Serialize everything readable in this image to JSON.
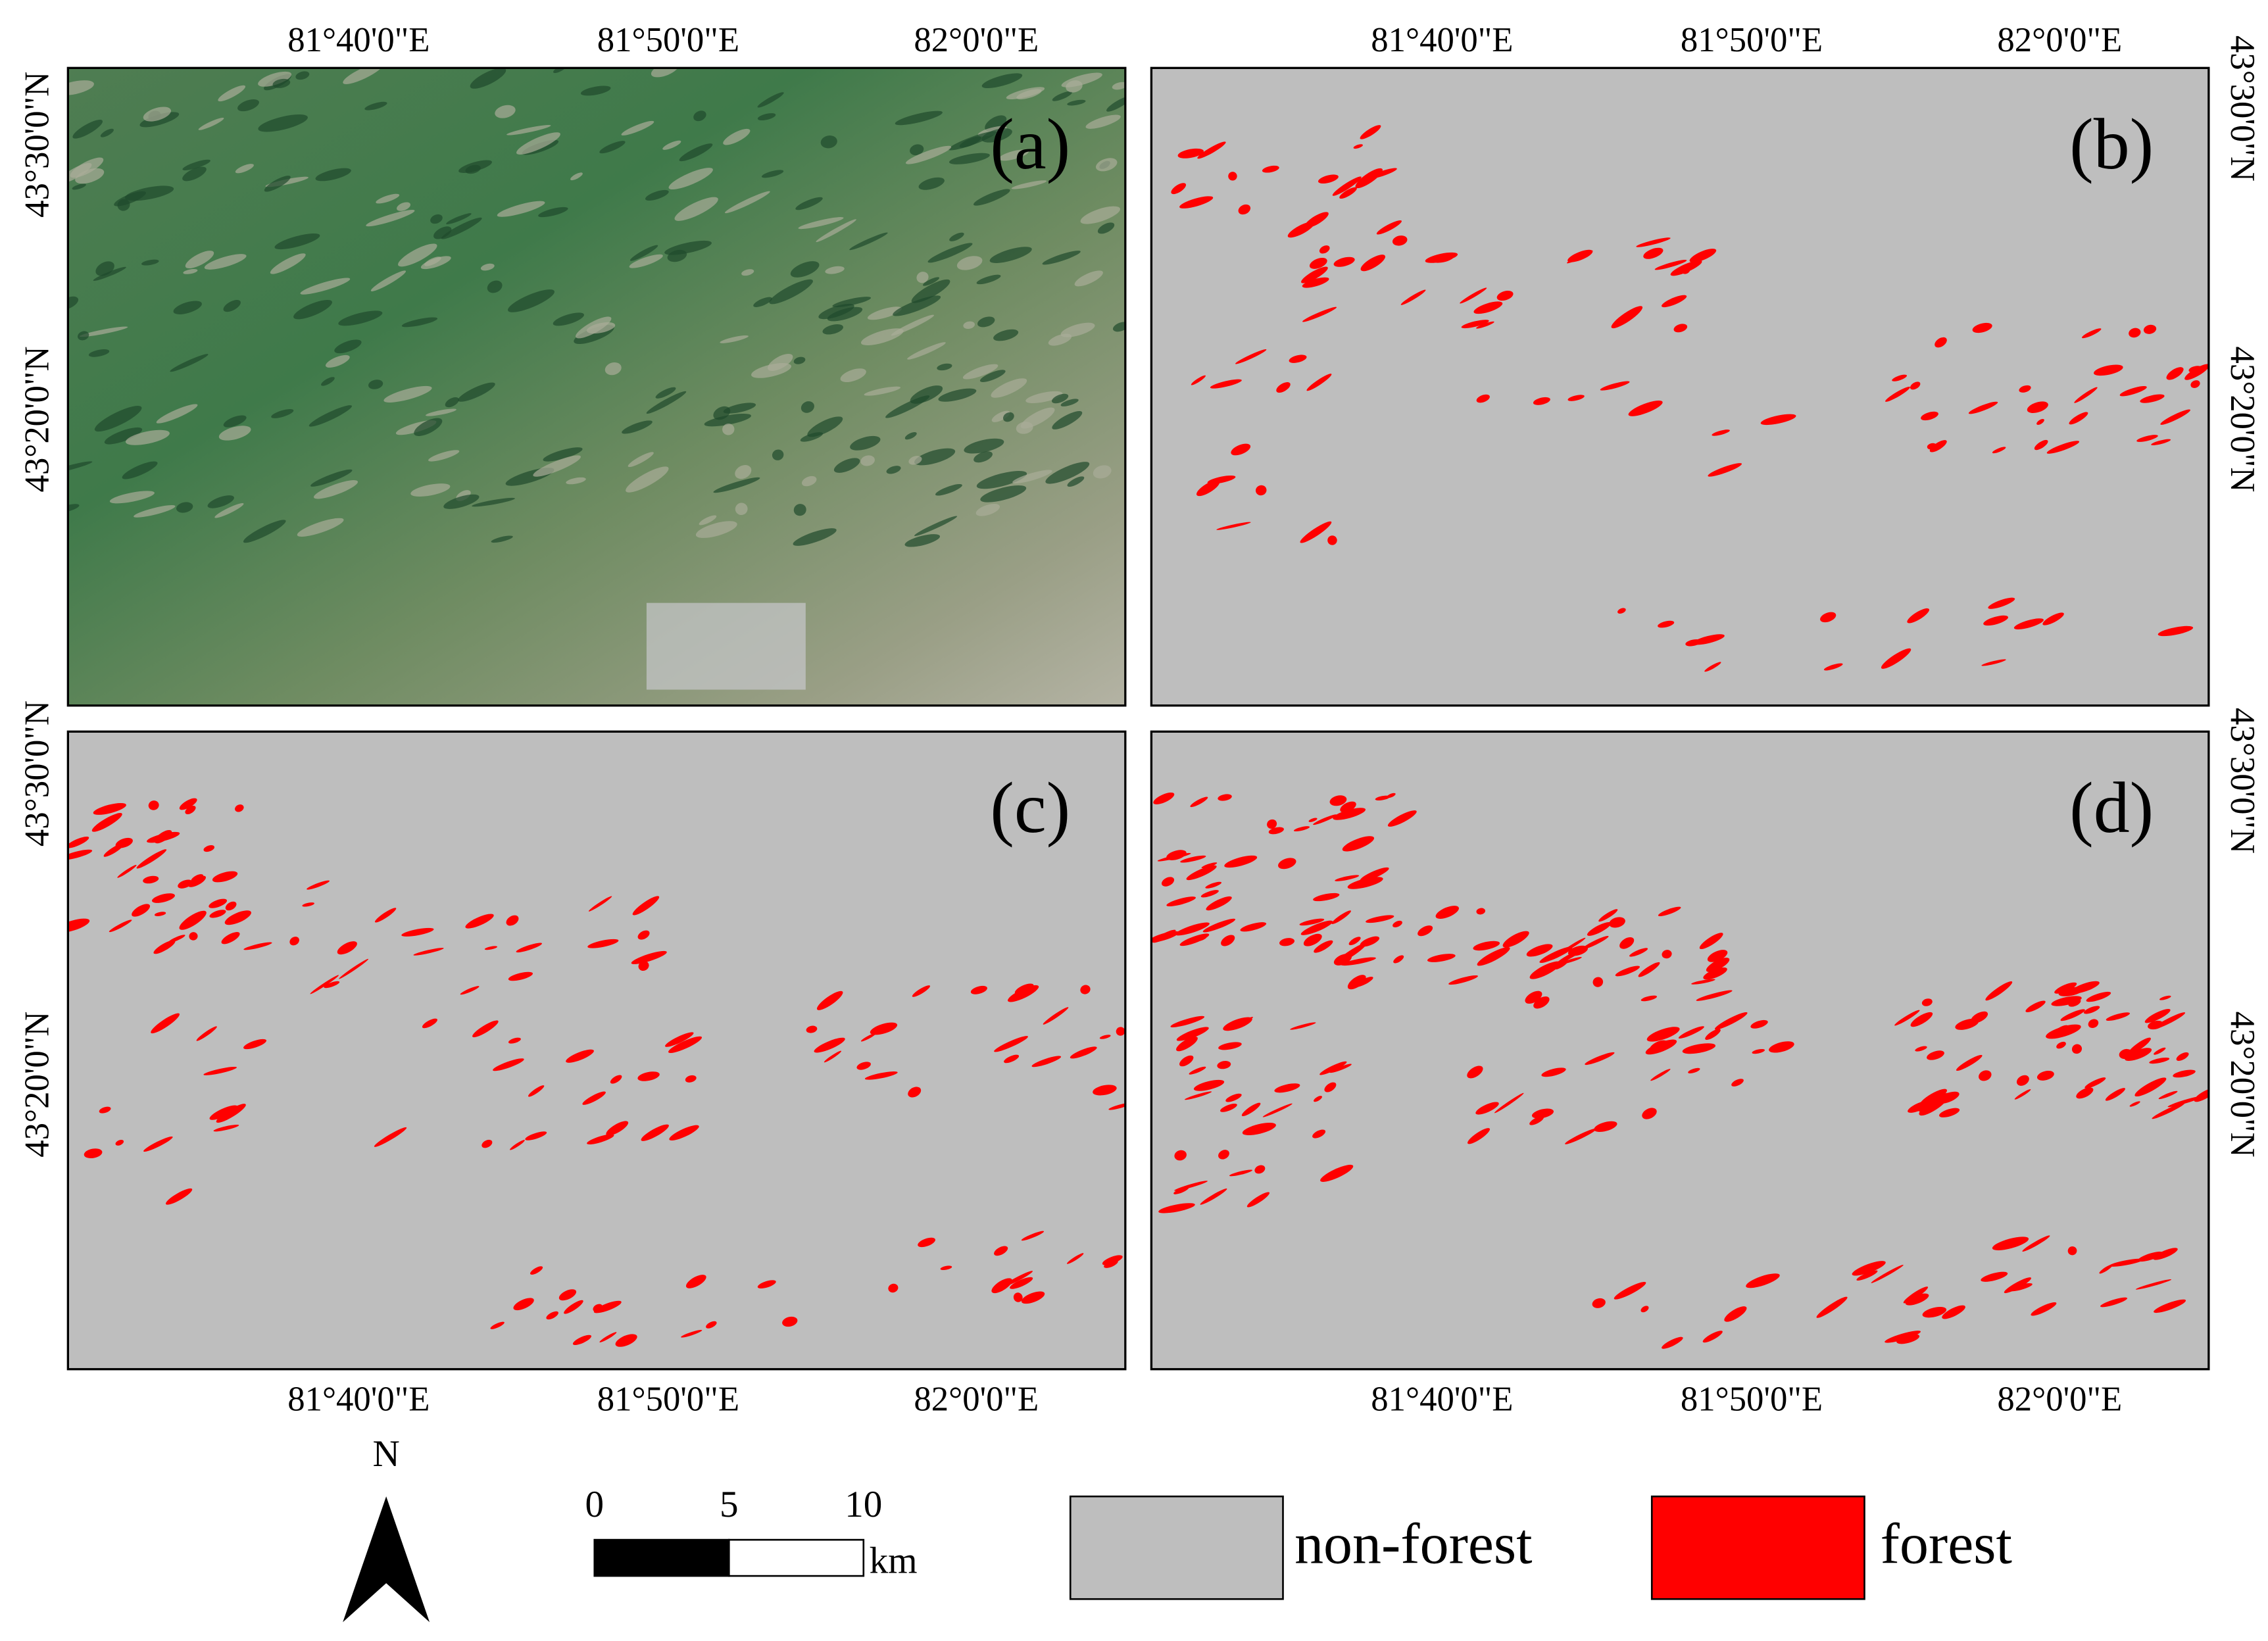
{
  "panels": [
    {
      "label": "(a)"
    },
    {
      "label": "(b)"
    },
    {
      "label": "(c)"
    },
    {
      "label": "(d)"
    }
  ],
  "longitude_labels": [
    "81°40'0\"E",
    "81°50'0\"E",
    "82°0'0\"E"
  ],
  "latitude_labels": [
    "43°30'0\"N",
    "43°20'0\"N"
  ],
  "north_arrow": "N",
  "scale_bar": {
    "ticks": [
      0,
      5,
      10
    ],
    "unit": "km"
  },
  "legend": [
    {
      "label": "non-forest",
      "color": "#bebebe"
    },
    {
      "label": "forest",
      "color": "#ff0000"
    }
  ]
}
